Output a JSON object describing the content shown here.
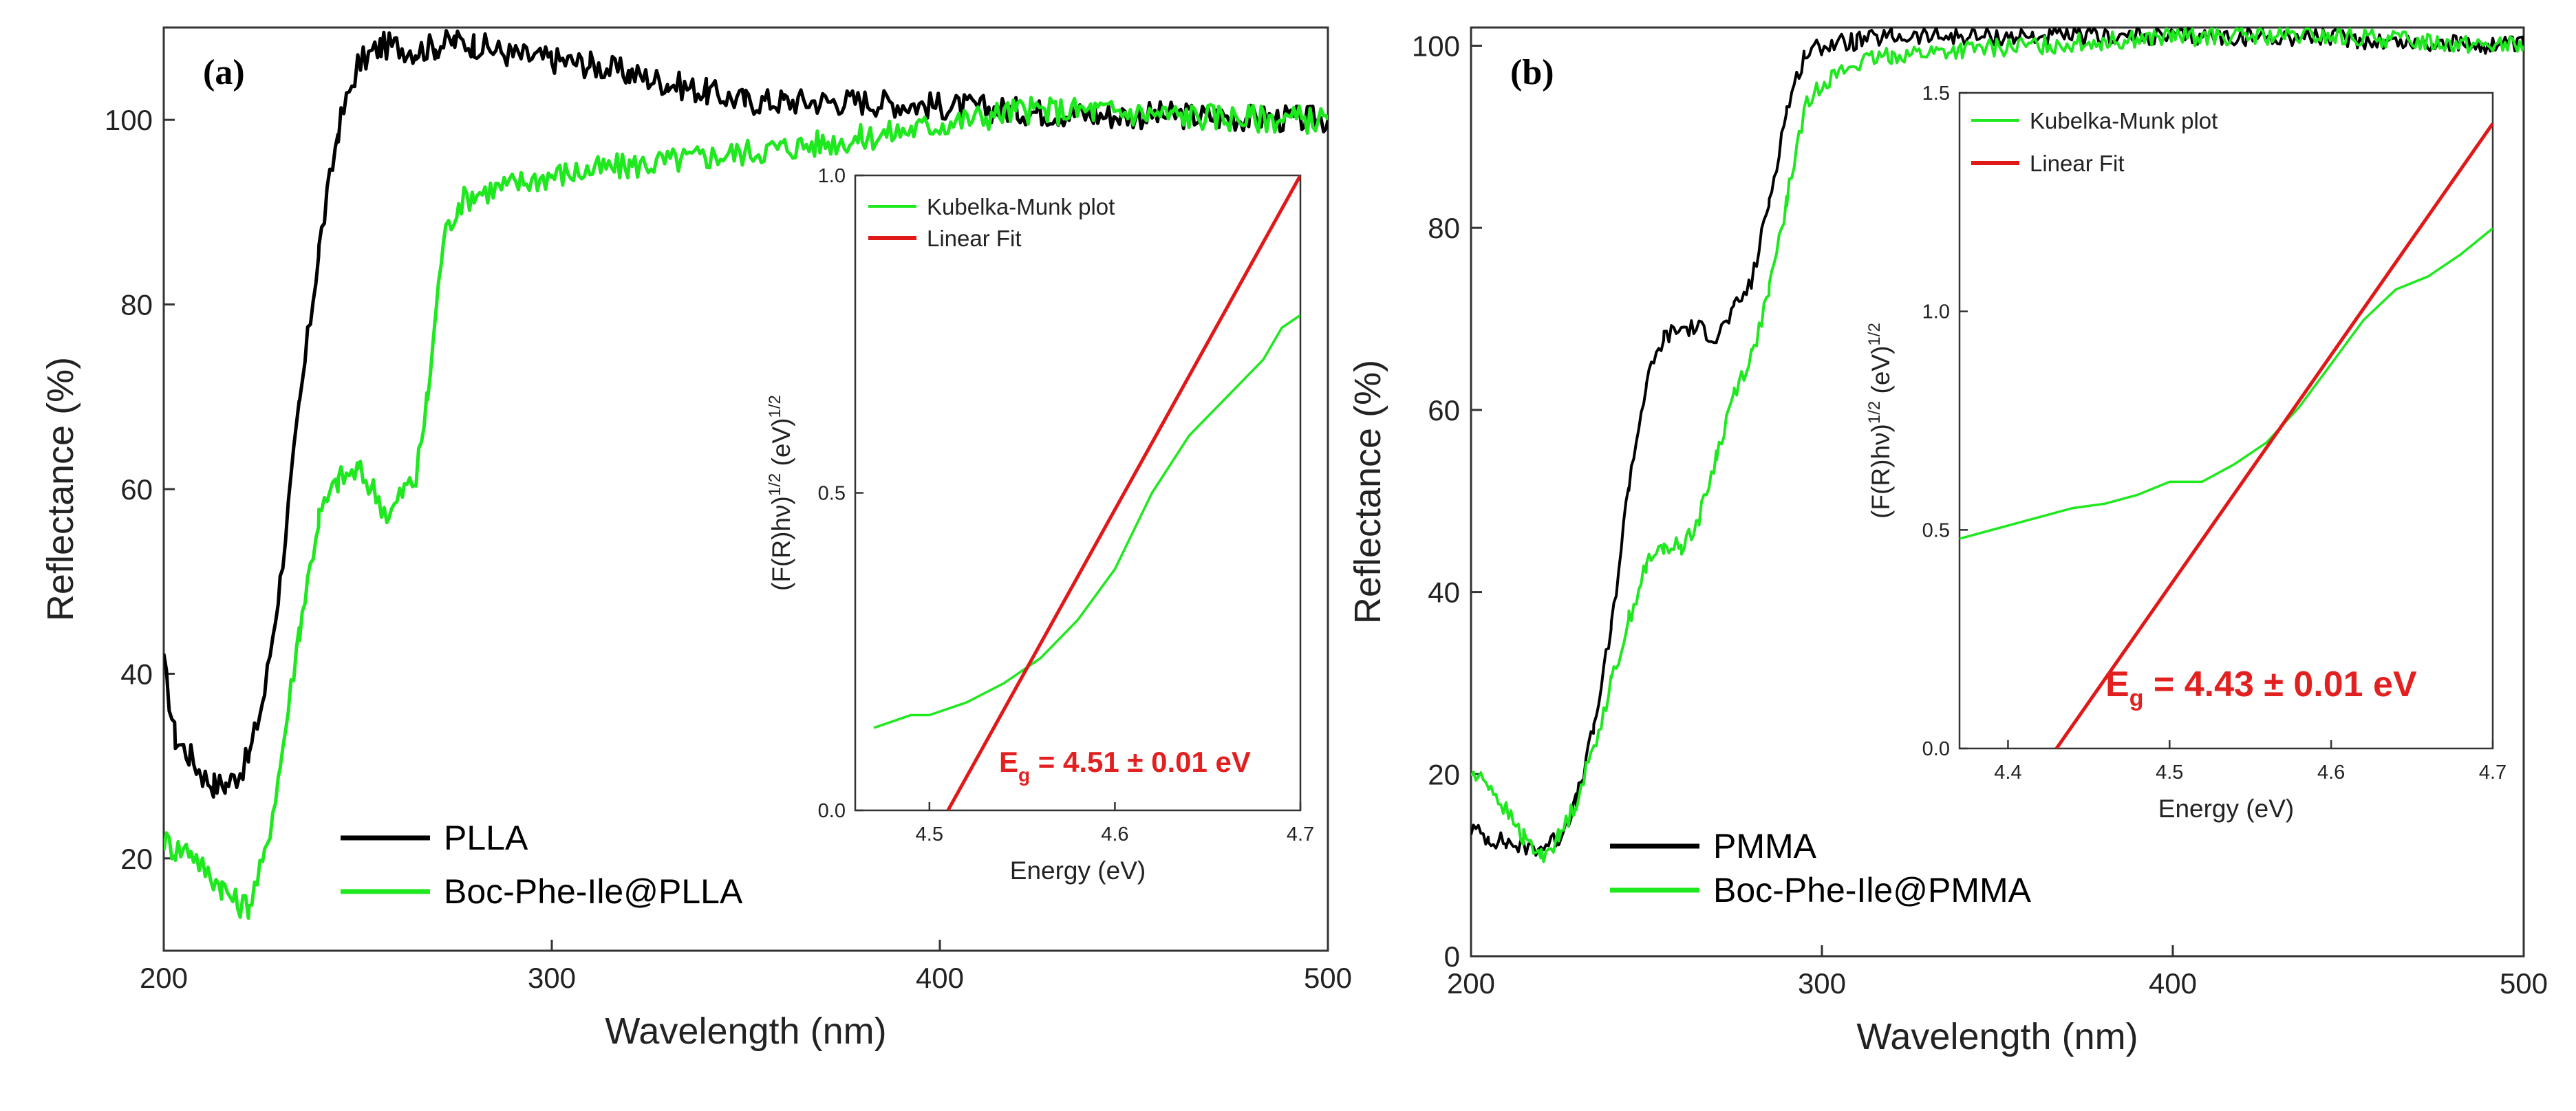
{
  "colors": {
    "black_series": "#000000",
    "green_series": "#1ee81e",
    "fit_line": "#e01818",
    "eg_text": "#e32020"
  },
  "chart_data": [
    {
      "type": "line",
      "panel_label": "(a)",
      "xlabel": "Wavelength (nm)",
      "ylabel": "Reflectance (%)",
      "xlim": [
        200,
        500
      ],
      "ylim": [
        10,
        110
      ],
      "xticks": [
        "200",
        "300",
        "400",
        "500"
      ],
      "yticks": [
        "20",
        "40",
        "60",
        "80",
        "100"
      ],
      "legend_position": "bottom-left",
      "series": [
        {
          "name": "PLLA",
          "color": "#000000",
          "x": [
            200,
            203,
            207,
            210,
            213,
            216,
            219,
            222,
            226,
            230,
            235,
            240,
            245,
            250,
            253,
            256,
            260,
            265,
            270,
            275,
            280,
            290,
            300,
            310,
            320,
            330,
            340,
            350,
            360,
            380,
            400,
            420,
            440,
            460,
            480,
            500
          ],
          "y": [
            41,
            33,
            31,
            29,
            28,
            28,
            29,
            31,
            38,
            50,
            69,
            86,
            99,
            106,
            107,
            108,
            108,
            107.5,
            108,
            108.5,
            108.2,
            107,
            106.5,
            106,
            105,
            104,
            103,
            102,
            102,
            102,
            101.5,
            101,
            100.5,
            100.5,
            100.2,
            100
          ]
        },
        {
          "name": "Boc-Phe-Ile@PLLA",
          "color": "#1ee81e",
          "x": [
            200,
            203,
            207,
            210,
            215,
            219,
            222,
            226,
            230,
            235,
            240,
            245,
            250,
            254,
            258,
            262,
            265,
            268,
            272,
            276,
            280,
            290,
            300,
            320,
            340,
            360,
            380,
            400,
            420,
            440,
            460,
            480,
            500
          ],
          "y": [
            22,
            21,
            21,
            19,
            17,
            15,
            15,
            20,
            30,
            45,
            57,
            61,
            62,
            60,
            57,
            60,
            61,
            70,
            87,
            91,
            92,
            93,
            94,
            95,
            96,
            97,
            98,
            99.5,
            101,
            101,
            100.5,
            100.2,
            100
          ]
        }
      ],
      "inset": {
        "xlabel": "Energy (eV)",
        "ylabel": "(F(R)hν)",
        "ylabel_sup": "1/2",
        "ylabel_unit": " (eV)",
        "xlim": [
          4.46,
          4.7
        ],
        "ylim": [
          0.0,
          1.0
        ],
        "xticks": [
          "4.5",
          "4.6",
          "4.7"
        ],
        "yticks": [
          "0.0",
          "0.5",
          "1.0"
        ],
        "legend": [
          "Kubelka-Munk plot",
          "Linear Fit"
        ],
        "eg_prefix": "E",
        "eg_sub": "g",
        "eg_value": " = 4.51 ± 0.01 eV",
        "series": [
          {
            "name": "Kubelka-Munk plot",
            "color": "#1ee81e",
            "x": [
              4.47,
              4.48,
              4.49,
              4.5,
              4.52,
              4.54,
              4.56,
              4.58,
              4.6,
              4.62,
              4.64,
              4.66,
              4.68,
              4.69,
              4.7
            ],
            "y": [
              0.13,
              0.14,
              0.15,
              0.15,
              0.17,
              0.2,
              0.24,
              0.3,
              0.38,
              0.5,
              0.59,
              0.65,
              0.71,
              0.76,
              0.78
            ]
          },
          {
            "name": "Linear Fit",
            "color": "#e01818",
            "x": [
              4.51,
              4.7
            ],
            "y": [
              0.0,
              1.0
            ]
          }
        ]
      }
    },
    {
      "type": "line",
      "panel_label": "(b)",
      "xlabel": "Wavelength (nm)",
      "ylabel": "Reflectance (%)",
      "xlim": [
        200,
        500
      ],
      "ylim": [
        0,
        102
      ],
      "xticks": [
        "200",
        "300",
        "400",
        "500"
      ],
      "yticks": [
        "0",
        "20",
        "40",
        "60",
        "80",
        "100"
      ],
      "legend_position": "bottom-left",
      "series": [
        {
          "name": "PMMA",
          "color": "#000000",
          "x": [
            200,
            205,
            210,
            215,
            220,
            225,
            230,
            235,
            240,
            245,
            250,
            255,
            260,
            265,
            270,
            275,
            280,
            285,
            290,
            295,
            300,
            310,
            320,
            340,
            360,
            380,
            400,
            420,
            440,
            460,
            480,
            500
          ],
          "y": [
            14,
            13,
            12.5,
            12,
            12,
            13,
            17,
            25,
            36,
            52,
            63,
            68,
            69,
            69,
            68,
            71,
            74,
            83,
            93,
            99,
            100,
            100.5,
            101,
            101,
            101,
            101,
            101,
            101,
            101,
            100.5,
            100.2,
            100
          ]
        },
        {
          "name": "Boc-Phe-Ile@PMMA",
          "color": "#1ee81e",
          "x": [
            200,
            205,
            210,
            215,
            220,
            225,
            230,
            235,
            240,
            245,
            250,
            255,
            260,
            265,
            270,
            275,
            280,
            285,
            290,
            295,
            300,
            310,
            320,
            340,
            360,
            380,
            400,
            420,
            440,
            460,
            480,
            500
          ],
          "y": [
            20,
            19,
            16,
            13,
            11,
            13,
            17,
            23,
            30,
            37,
            43,
            45,
            45,
            48,
            55,
            62,
            66,
            73,
            83,
            93,
            96,
            98,
            99,
            99.5,
            100,
            100.5,
            101,
            101,
            101,
            100.8,
            100.3,
            100
          ]
        }
      ],
      "inset": {
        "xlabel": "Energy (eV)",
        "ylabel": "(F(R)hν)",
        "ylabel_sup": "1/2",
        "ylabel_unit": " (eV)",
        "xlim": [
          4.37,
          4.7
        ],
        "ylim": [
          0.0,
          1.5
        ],
        "xticks": [
          "4.4",
          "4.5",
          "4.6",
          "4.7"
        ],
        "yticks": [
          "0.0",
          "0.5",
          "1.0",
          "1.5"
        ],
        "legend": [
          "Kubelka-Munk plot",
          "Linear Fit"
        ],
        "eg_prefix": "E",
        "eg_sub": "g",
        "eg_value": " = 4.43 ± 0.01 eV",
        "series": [
          {
            "name": "Kubelka-Munk plot",
            "color": "#1ee81e",
            "x": [
              4.37,
              4.4,
              4.42,
              4.44,
              4.46,
              4.48,
              4.5,
              4.52,
              4.54,
              4.56,
              4.58,
              4.6,
              4.62,
              4.64,
              4.66,
              4.68,
              4.7
            ],
            "y": [
              0.48,
              0.51,
              0.53,
              0.55,
              0.56,
              0.58,
              0.61,
              0.61,
              0.65,
              0.7,
              0.78,
              0.88,
              0.98,
              1.05,
              1.08,
              1.13,
              1.19
            ]
          },
          {
            "name": "Linear Fit",
            "color": "#e01818",
            "x": [
              4.43,
              4.7
            ],
            "y": [
              0.0,
              1.43
            ]
          }
        ]
      }
    }
  ]
}
